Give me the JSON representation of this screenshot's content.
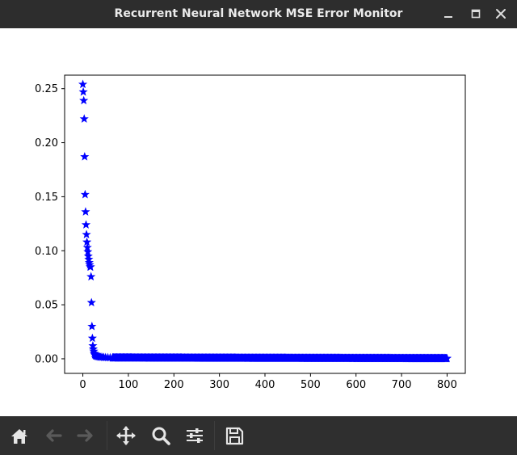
{
  "window": {
    "title": "Recurrent Neural Network MSE Error Monitor"
  },
  "toolbar": {
    "buttons": [
      {
        "icon": "home-icon",
        "enabled": true
      },
      {
        "icon": "back-arrow-icon",
        "enabled": false
      },
      {
        "icon": "forward-arrow-icon",
        "enabled": false
      },
      {
        "icon": "pan-move-icon",
        "enabled": true
      },
      {
        "icon": "zoom-magnifier-icon",
        "enabled": true
      },
      {
        "icon": "configure-subplots-icon",
        "enabled": true
      },
      {
        "icon": "save-floppy-icon",
        "enabled": true
      }
    ]
  },
  "colors": {
    "titlebar": "#2d2d2d",
    "toolbar": "#2f2f2f",
    "marker": "#0000ff",
    "icon_enabled": "#e6e6e6",
    "icon_disabled": "#5a5a5a"
  },
  "chart_data": {
    "type": "scatter",
    "marker": "star",
    "color": "#0000ff",
    "xlim": [
      -40,
      840
    ],
    "ylim": [
      -0.0135,
      0.2625
    ],
    "xticks": [
      0,
      100,
      200,
      300,
      400,
      500,
      600,
      700,
      800
    ],
    "yticks": [
      0.0,
      0.05,
      0.1,
      0.15,
      0.2,
      0.25
    ],
    "xtick_labels": [
      "0",
      "100",
      "200",
      "300",
      "400",
      "500",
      "600",
      "700",
      "800"
    ],
    "ytick_labels": [
      "0.00",
      "0.05",
      "0.10",
      "0.15",
      "0.20",
      "0.25"
    ],
    "grid": false,
    "points_head": [
      [
        0,
        0.254
      ],
      [
        1,
        0.247
      ],
      [
        2,
        0.239
      ],
      [
        3,
        0.222
      ],
      [
        4,
        0.187
      ],
      [
        5,
        0.152
      ],
      [
        6,
        0.136
      ],
      [
        7,
        0.124
      ],
      [
        8,
        0.115
      ],
      [
        9,
        0.108
      ],
      [
        10,
        0.103
      ],
      [
        11,
        0.099
      ],
      [
        12,
        0.095
      ],
      [
        13,
        0.092
      ],
      [
        14,
        0.089
      ],
      [
        15,
        0.087
      ],
      [
        16,
        0.085
      ],
      [
        17,
        0.085
      ],
      [
        18,
        0.076
      ],
      [
        19,
        0.052
      ],
      [
        20,
        0.03
      ],
      [
        21,
        0.019
      ],
      [
        22,
        0.012
      ],
      [
        23,
        0.009
      ],
      [
        24,
        0.007
      ],
      [
        25,
        0.005
      ],
      [
        26,
        0.004
      ],
      [
        27,
        0.0035
      ],
      [
        28,
        0.003
      ],
      [
        29,
        0.0028
      ],
      [
        30,
        0.0025
      ],
      [
        32,
        0.0022
      ],
      [
        34,
        0.002
      ],
      [
        36,
        0.0018
      ],
      [
        38,
        0.0016
      ],
      [
        40,
        0.0015
      ],
      [
        43,
        0.0014
      ],
      [
        46,
        0.0013
      ],
      [
        50,
        0.0012
      ],
      [
        55,
        0.0011
      ],
      [
        60,
        0.001
      ],
      [
        65,
        0.0009
      ]
    ],
    "tail": {
      "x_start": 66,
      "x_end": 800,
      "y_start": 0.0009,
      "y_end": 0.0003
    }
  }
}
